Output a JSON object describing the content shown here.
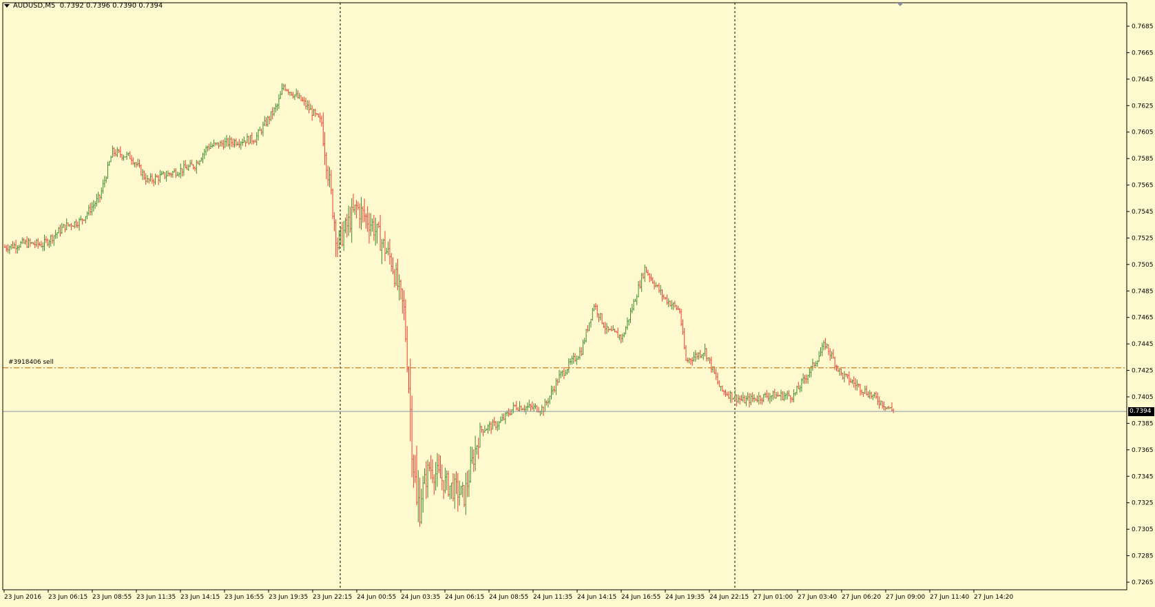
{
  "chart_header": {
    "symbol_timeframe": "AUDUSD,M5",
    "ohlc_text": "0.7392 0.7396 0.7390 0.7394"
  },
  "order_line": {
    "label": "#3918406 sell",
    "price": 0.7427
  },
  "current_price": {
    "label": "0.7394",
    "value": 0.7394
  },
  "colors": {
    "background": "#fff9cf",
    "bull_candle": "#3a8a2a",
    "bear_candle": "#ee3a2a",
    "order_line": "#d8792a",
    "bid_line": "#8899aa",
    "separator": "#000000"
  },
  "y_axis": {
    "min": 0.7255,
    "max": 0.7695,
    "tick_labels": [
      "0.7685",
      "0.7665",
      "0.7645",
      "0.7625",
      "0.7605",
      "0.7585",
      "0.7565",
      "0.7545",
      "0.7525",
      "0.7505",
      "0.7485",
      "0.7465",
      "0.7445",
      "0.7425",
      "0.7405",
      "0.7385",
      "0.7365",
      "0.7345",
      "0.7325",
      "0.7305",
      "0.7285",
      "0.7265"
    ]
  },
  "x_axis": {
    "tick_labels": [
      "23 Jun 2016",
      "23 Jun 06:15",
      "23 Jun 08:55",
      "23 Jun 11:35",
      "23 Jun 14:15",
      "23 Jun 16:55",
      "23 Jun 19:35",
      "23 Jun 22:15",
      "24 Jun 00:55",
      "24 Jun 03:35",
      "24 Jun 06:15",
      "24 Jun 08:55",
      "24 Jun 11:35",
      "24 Jun 14:15",
      "24 Jun 16:55",
      "24 Jun 19:35",
      "24 Jun 22:15",
      "27 Jun 01:00",
      "27 Jun 03:40",
      "27 Jun 06:20",
      "27 Jun 09:00",
      "27 Jun 11:40",
      "27 Jun 14:20"
    ]
  },
  "chart_data": {
    "type": "candlestick",
    "symbol": "AUDUSD",
    "timeframe": "M5",
    "day_separators": [
      "24 Jun 00:00",
      "27 Jun 00:00"
    ],
    "close_path": [
      [
        0,
        0.7518
      ],
      [
        12,
        0.7521
      ],
      [
        24,
        0.752
      ],
      [
        38,
        0.7534
      ],
      [
        48,
        0.7538
      ],
      [
        60,
        0.7556
      ],
      [
        68,
        0.759
      ],
      [
        80,
        0.7586
      ],
      [
        90,
        0.7568
      ],
      [
        110,
        0.7576
      ],
      [
        120,
        0.758
      ],
      [
        128,
        0.7594
      ],
      [
        145,
        0.7598
      ],
      [
        158,
        0.76
      ],
      [
        172,
        0.7625
      ],
      [
        176,
        0.764
      ],
      [
        188,
        0.7628
      ],
      [
        200,
        0.7612
      ],
      [
        210,
        0.752
      ],
      [
        222,
        0.7548
      ],
      [
        232,
        0.7535
      ],
      [
        244,
        0.7508
      ],
      [
        252,
        0.747
      ],
      [
        260,
        0.732
      ],
      [
        268,
        0.7352
      ],
      [
        278,
        0.734
      ],
      [
        290,
        0.733
      ],
      [
        300,
        0.738
      ],
      [
        312,
        0.7385
      ],
      [
        322,
        0.7398
      ],
      [
        340,
        0.7396
      ],
      [
        350,
        0.742
      ],
      [
        364,
        0.744
      ],
      [
        372,
        0.7475
      ],
      [
        380,
        0.7455
      ],
      [
        390,
        0.745
      ],
      [
        404,
        0.7502
      ],
      [
        416,
        0.748
      ],
      [
        426,
        0.747
      ],
      [
        430,
        0.7432
      ],
      [
        442,
        0.744
      ],
      [
        452,
        0.741
      ],
      [
        466,
        0.7402
      ],
      [
        482,
        0.7406
      ],
      [
        498,
        0.7406
      ],
      [
        510,
        0.7428
      ],
      [
        518,
        0.7445
      ],
      [
        528,
        0.7422
      ],
      [
        540,
        0.7412
      ],
      [
        552,
        0.7402
      ],
      [
        561,
        0.7394
      ]
    ]
  }
}
